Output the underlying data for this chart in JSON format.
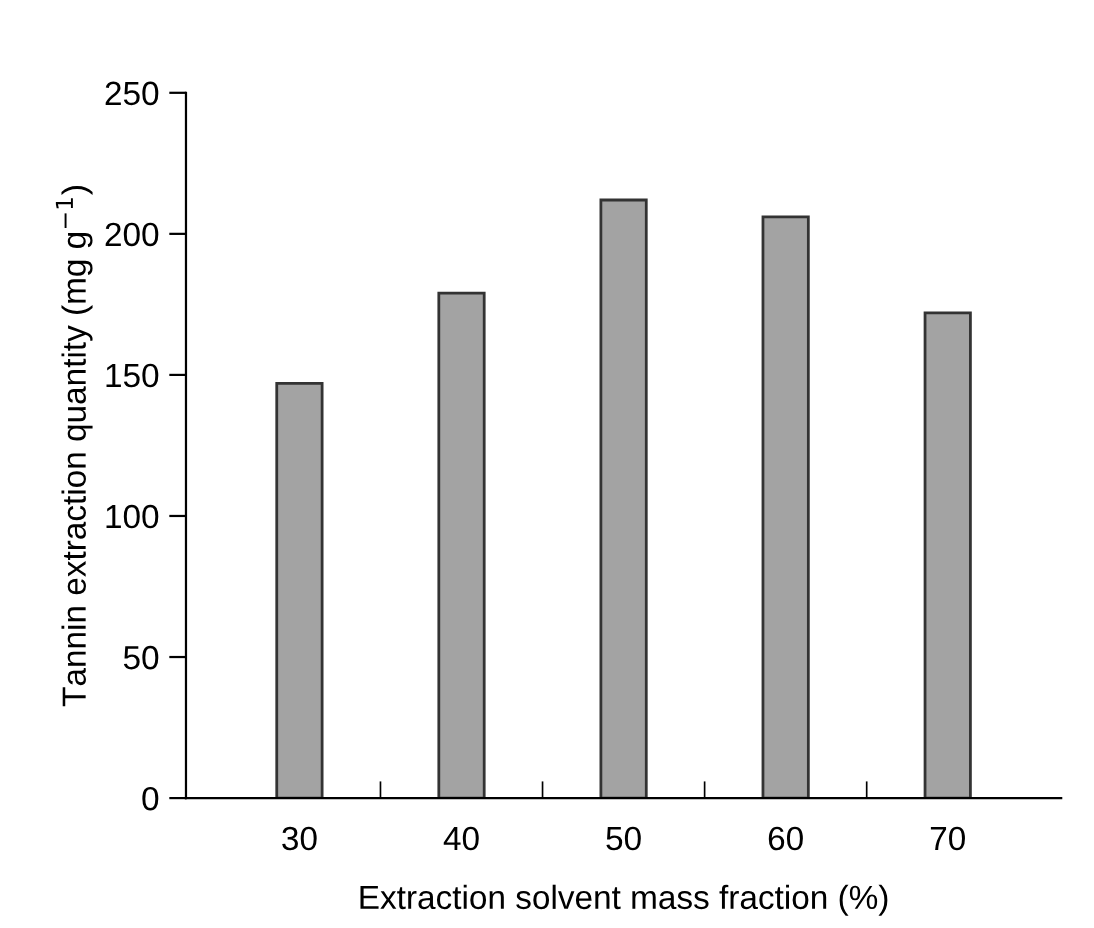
{
  "chart_data": {
    "type": "bar",
    "xlabel": "Extraction solvent mass fraction (%)",
    "ylabel": "Tannin extraction quantity (mg g$^{−1}$)",
    "categories": [
      "30",
      "40",
      "50",
      "60",
      "70"
    ],
    "values": [
      147,
      179,
      212,
      206,
      172
    ],
    "color": "#a3a3a3",
    "ylim": [
      0,
      250
    ],
    "yticks": [
      0,
      50,
      100,
      150,
      200,
      250
    ],
    "grid": false,
    "legend": false
  }
}
